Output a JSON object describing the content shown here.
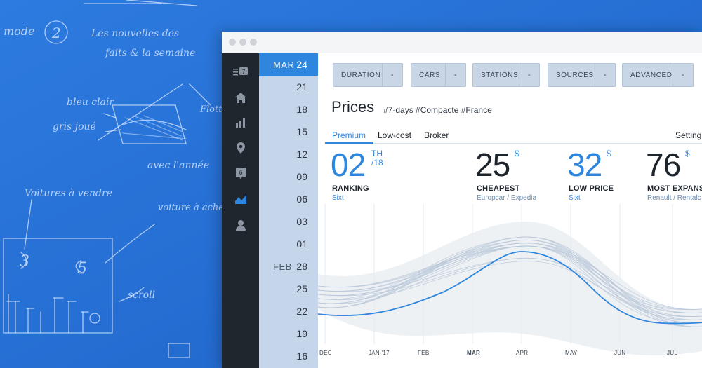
{
  "background_sketch": {
    "notes": [
      "mode",
      "Les nouvelles des",
      "faits & la semaine",
      "bleu clair",
      "gris joué",
      "Flotte",
      "avec l'année",
      "Voitures à vendre",
      "voiture à acheter",
      "scroll"
    ],
    "numbers": [
      "2",
      "3",
      "5"
    ]
  },
  "window_controls": [
    "close",
    "minimize",
    "maximize"
  ],
  "sidebar": {
    "items": [
      {
        "icon": "list-icon",
        "badge": "7"
      },
      {
        "icon": "home-icon"
      },
      {
        "icon": "bar-chart-icon"
      },
      {
        "icon": "location-pin-icon"
      },
      {
        "icon": "calendar-icon",
        "badge": "6"
      },
      {
        "icon": "area-chart-icon",
        "active": true
      },
      {
        "icon": "user-icon"
      }
    ]
  },
  "dates": [
    {
      "month": "MAR",
      "day": "24",
      "active": true
    },
    {
      "month": "",
      "day": "21"
    },
    {
      "month": "",
      "day": "18"
    },
    {
      "month": "",
      "day": "15"
    },
    {
      "month": "",
      "day": "12"
    },
    {
      "month": "",
      "day": "09"
    },
    {
      "month": "",
      "day": "06"
    },
    {
      "month": "",
      "day": "03"
    },
    {
      "month": "",
      "day": "01"
    },
    {
      "month": "FEB",
      "day": "28"
    },
    {
      "month": "",
      "day": "25"
    },
    {
      "month": "",
      "day": "22"
    },
    {
      "month": "",
      "day": "19"
    },
    {
      "month": "",
      "day": "16"
    }
  ],
  "filters": [
    {
      "label": "DURATION",
      "drop": "-"
    },
    {
      "label": "CARS",
      "drop": "-"
    },
    {
      "label": "STATIONS",
      "drop": "-"
    },
    {
      "label": "SOURCES",
      "drop": "-"
    },
    {
      "label": "ADVANCED",
      "drop": "-"
    }
  ],
  "header": {
    "title": "Prices",
    "tags": "#7-days #Compacte #France"
  },
  "tabs": [
    "Premium",
    "Low-cost",
    "Broker"
  ],
  "settings_label": "Setting",
  "stats": [
    {
      "value": "02",
      "sup_top": "TH",
      "sup_bottom": "/18",
      "label": "RANKING",
      "sub": "Sixt"
    },
    {
      "value": "25",
      "sup_top": "$",
      "label": "CHEAPEST",
      "sub": "Europcar / Expedia"
    },
    {
      "value": "32",
      "sup_top": "$",
      "label": "LOW PRICE",
      "sub": "Sixt"
    },
    {
      "value": "76",
      "sup_top": "$",
      "label": "MOST EXPANS",
      "sub": "Renault / Rentalc"
    }
  ],
  "chart_data": {
    "type": "line",
    "x": [
      "DEC",
      "JAN '17",
      "FEB",
      "MAR",
      "APR",
      "MAY",
      "JUN",
      "JUL"
    ],
    "highlighted_month": "MAR",
    "series_highlight": {
      "color": "#2f86df"
    },
    "series_background_color": "#b8c7d8",
    "band_color": "#eef1f4"
  },
  "colors": {
    "accent": "#2f86df",
    "sidebar": "#20262e",
    "datecol": "#c5d6ea",
    "desk": "#2a73d6"
  }
}
